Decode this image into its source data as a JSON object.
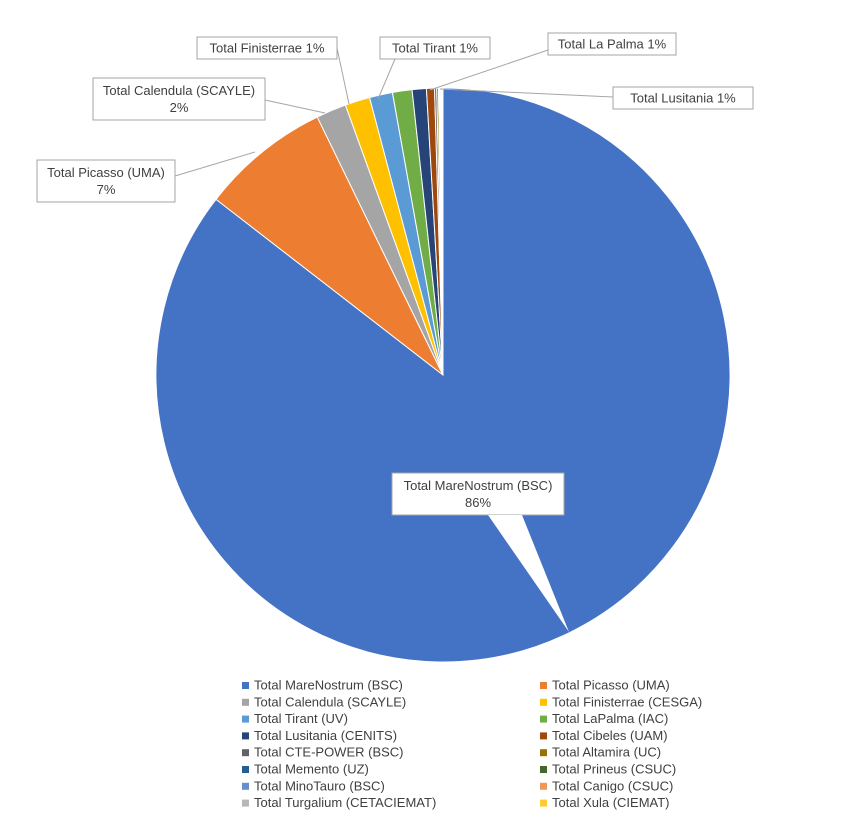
{
  "chart_data": {
    "type": "pie",
    "title": "",
    "unit": "%",
    "legend_position": "bottom",
    "slices": [
      {
        "label": "Total MareNostrum (BSC)",
        "value": 85.5,
        "color": "#4472c4"
      },
      {
        "label": "Total Picasso (UMA)",
        "value": 7.3,
        "color": "#ed7d31"
      },
      {
        "label": "Total Calendula (SCAYLE)",
        "value": 1.7,
        "color": "#a5a5a5"
      },
      {
        "label": "Total Finisterrae (CESGA)",
        "value": 1.4,
        "color": "#ffc000"
      },
      {
        "label": "Total Tirant (UV)",
        "value": 1.3,
        "color": "#5b9bd5"
      },
      {
        "label": "Total LaPalma (IAC)",
        "value": 1.1,
        "color": "#70ad47"
      },
      {
        "label": "Total Lusitania (CENITS)",
        "value": 0.8,
        "color": "#264478"
      },
      {
        "label": "Total Cibeles (UAM)",
        "value": 0.45,
        "color": "#9e480e"
      },
      {
        "label": "Total CTE-POWER (BSC)",
        "value": 0.12,
        "color": "#636363"
      },
      {
        "label": "Total Altamira (UC)",
        "value": 0.1,
        "color": "#997300"
      },
      {
        "label": "Total Memento (UZ)",
        "value": 0.06,
        "color": "#255e91"
      },
      {
        "label": "Total Prineus (CSUC)",
        "value": 0.05,
        "color": "#43682b"
      },
      {
        "label": "Total MinoTauro (BSC)",
        "value": 0.04,
        "color": "#698ed0"
      },
      {
        "label": "Total Canigo (CSUC)",
        "value": 0.04,
        "color": "#f1975a"
      },
      {
        "label": "Total Turgalium (CETACIEMAT)",
        "value": 0.03,
        "color": "#b7b7b7"
      },
      {
        "label": "Total Xula (CIEMAT)",
        "value": 0.03,
        "color": "#ffcd33"
      }
    ],
    "callouts": [
      {
        "slice": 0,
        "lines": [
          "Total MareNostrum (BSC)",
          "86%"
        ]
      },
      {
        "slice": 1,
        "lines": [
          "Total Picasso (UMA)",
          "7%"
        ]
      },
      {
        "slice": 2,
        "lines": [
          "Total Calendula (SCAYLE)",
          "2%"
        ]
      },
      {
        "slice": 3,
        "lines": [
          "Total Finisterrae 1%"
        ]
      },
      {
        "slice": 4,
        "lines": [
          "Total Tirant 1%"
        ]
      },
      {
        "slice": 5,
        "lines": [
          "Total La Palma 1%"
        ]
      },
      {
        "slice": 6,
        "lines": [
          "Total Lusitania 1%"
        ]
      }
    ]
  }
}
